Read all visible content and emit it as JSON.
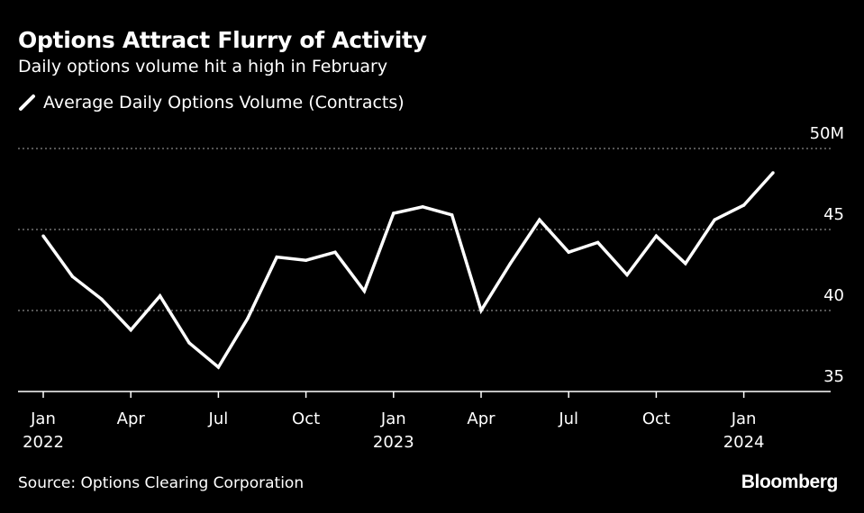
{
  "header": {
    "title": "Options Attract Flurry of Activity",
    "subtitle": "Daily options volume hit a high in February"
  },
  "legend": {
    "label": "Average Daily Options Volume (Contracts)"
  },
  "footer": {
    "source": "Source: Options Clearing Corporation",
    "brand": "Bloomberg"
  },
  "colors": {
    "background": "#000000",
    "line": "#ffffff",
    "text": "#ffffff",
    "gridline": "#8a8a8a",
    "axis": "#ffffff"
  },
  "chart_data": {
    "type": "line",
    "title": "Options Attract Flurry of Activity",
    "subtitle": "Daily options volume hit a high in February",
    "xlabel": "",
    "ylabel": "",
    "ylim": [
      35,
      50
    ],
    "y_ticks": [
      35,
      40,
      45,
      50
    ],
    "y_tick_labels": [
      "35",
      "40",
      "45",
      "50M"
    ],
    "grid": "horizontal dotted",
    "legend_position": "top-left",
    "x_ticks": [
      {
        "month": "2022-01",
        "line1": "Jan",
        "line2": "2022"
      },
      {
        "month": "2022-04",
        "line1": "Apr",
        "line2": ""
      },
      {
        "month": "2022-07",
        "line1": "Jul",
        "line2": ""
      },
      {
        "month": "2022-10",
        "line1": "Oct",
        "line2": ""
      },
      {
        "month": "2023-01",
        "line1": "Jan",
        "line2": "2023"
      },
      {
        "month": "2023-04",
        "line1": "Apr",
        "line2": ""
      },
      {
        "month": "2023-07",
        "line1": "Jul",
        "line2": ""
      },
      {
        "month": "2023-10",
        "line1": "Oct",
        "line2": ""
      },
      {
        "month": "2024-01",
        "line1": "Jan",
        "line2": "2024"
      }
    ],
    "x_range": [
      "2022-01",
      "2024-04"
    ],
    "series": [
      {
        "name": "Average Daily Options Volume (Contracts)",
        "x": [
          "2022-01",
          "2022-02",
          "2022-03",
          "2022-04",
          "2022-05",
          "2022-06",
          "2022-07",
          "2022-08",
          "2022-09",
          "2022-10",
          "2022-11",
          "2022-12",
          "2023-01",
          "2023-02",
          "2023-03",
          "2023-04",
          "2023-05",
          "2023-06",
          "2023-07",
          "2023-08",
          "2023-09",
          "2023-10",
          "2023-11",
          "2023-12",
          "2024-01",
          "2024-02"
        ],
        "values": [
          44.6,
          42.1,
          40.7,
          38.8,
          40.9,
          38.0,
          36.5,
          39.5,
          43.3,
          43.1,
          43.6,
          41.2,
          46.0,
          46.4,
          45.9,
          40.0,
          42.9,
          45.6,
          43.6,
          44.2,
          42.2,
          44.6,
          42.9,
          45.6,
          46.5,
          48.5
        ]
      }
    ]
  }
}
